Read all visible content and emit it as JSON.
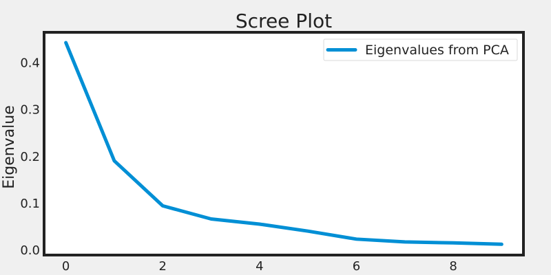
{
  "chart_data": {
    "type": "line",
    "title": "Scree Plot",
    "xlabel": "",
    "ylabel": "Eigenvalue",
    "x": [
      0,
      1,
      2,
      3,
      4,
      5,
      6,
      7,
      8,
      9
    ],
    "series": [
      {
        "name": "Eigenvalues from PCA",
        "values": [
          0.443,
          0.191,
          0.095,
          0.067,
          0.056,
          0.041,
          0.024,
          0.018,
          0.016,
          0.013
        ],
        "color": "#008fd5"
      }
    ],
    "xlim": [
      -0.45,
      9.45
    ],
    "ylim": [
      -0.01,
      0.465
    ],
    "xticks": [
      0,
      2,
      4,
      6,
      8
    ],
    "yticks": [
      0.0,
      0.1,
      0.2,
      0.3,
      0.4
    ],
    "xtick_labels": [
      "0",
      "2",
      "4",
      "6",
      "8"
    ],
    "ytick_labels": [
      "0.0",
      "0.1",
      "0.2",
      "0.3",
      "0.4"
    ],
    "grid": false,
    "legend_position": "top-right",
    "background_color": "#f0f0f0",
    "plot_background_color": "#ffffff",
    "frame_color": "#222222"
  }
}
